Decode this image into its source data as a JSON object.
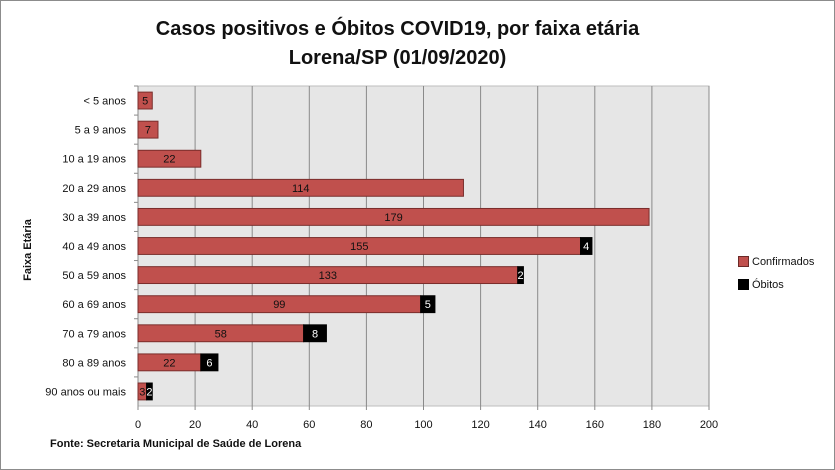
{
  "chart_data": {
    "type": "bar",
    "orientation": "horizontal",
    "stacked": true,
    "title": "Casos positivos e Óbitos COVID19, por faixa etária",
    "subtitle": "Lorena/SP (01/09/2020)",
    "ylabel": "Faixa Etária",
    "xlabel": "",
    "xlim": [
      0,
      200
    ],
    "xticks": [
      0,
      20,
      40,
      60,
      80,
      100,
      120,
      140,
      160,
      180,
      200
    ],
    "grid": true,
    "legend_position": "right",
    "categories": [
      "< 5 anos",
      "5 a 9 anos",
      "10 a 19 anos",
      "20 a 29 anos",
      "30 a 39 anos",
      "40 a 49 anos",
      "50 a 59 anos",
      "60 a 69 anos",
      "70 a 79 anos",
      "80 a 89 anos",
      "90 anos ou mais"
    ],
    "series": [
      {
        "name": "Confirmados",
        "color": "#c0504d",
        "values": [
          5,
          7,
          22,
          114,
          179,
          155,
          133,
          99,
          58,
          22,
          3
        ]
      },
      {
        "name": "Óbitos",
        "color": "#000000",
        "values": [
          0,
          0,
          0,
          0,
          0,
          4,
          2,
          5,
          8,
          6,
          2
        ]
      }
    ],
    "source": "Fonte: Secretaria Municipal de Saúde de Lorena"
  }
}
